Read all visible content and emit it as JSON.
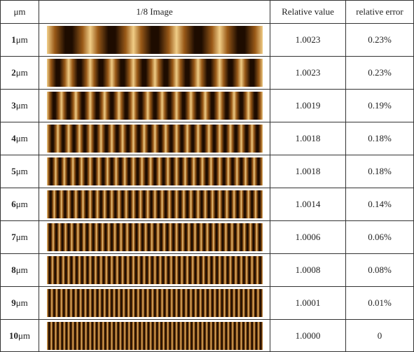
{
  "table": {
    "headers": {
      "size": "μm",
      "image": "1/8 Image",
      "relative_value": "Relative value",
      "relative_error": "relative error"
    },
    "rows": [
      {
        "size_num": "1",
        "unit": "μm",
        "stripes": 5,
        "relative_value": "1.0023",
        "relative_error": "0.23%"
      },
      {
        "size_num": "2",
        "unit": "μm",
        "stripes": 10,
        "relative_value": "1.0023",
        "relative_error": "0.23%"
      },
      {
        "size_num": "3",
        "unit": "μm",
        "stripes": 15,
        "relative_value": "1.0019",
        "relative_error": "0.19%"
      },
      {
        "size_num": "4",
        "unit": "μm",
        "stripes": 20,
        "relative_value": "1.0018",
        "relative_error": "0.18%"
      },
      {
        "size_num": "5",
        "unit": "μm",
        "stripes": 25,
        "relative_value": "1.0018",
        "relative_error": "0.18%"
      },
      {
        "size_num": "6",
        "unit": "μm",
        "stripes": 30,
        "relative_value": "1.0014",
        "relative_error": "0.14%"
      },
      {
        "size_num": "7",
        "unit": "μm",
        "stripes": 35,
        "relative_value": "1.0006",
        "relative_error": "0.06%"
      },
      {
        "size_num": "8",
        "unit": "μm",
        "stripes": 40,
        "relative_value": "1.0008",
        "relative_error": "0.08%"
      },
      {
        "size_num": "9",
        "unit": "μm",
        "stripes": 45,
        "relative_value": "1.0001",
        "relative_error": "0.01%"
      },
      {
        "size_num": "10",
        "unit": "μm",
        "stripes": 50,
        "relative_value": "1.0000",
        "relative_error": "0"
      }
    ]
  },
  "colors": {
    "dark": "#1e0c00",
    "mid": "#9a5a18",
    "light": "#f2cf88",
    "border": "#333333"
  }
}
